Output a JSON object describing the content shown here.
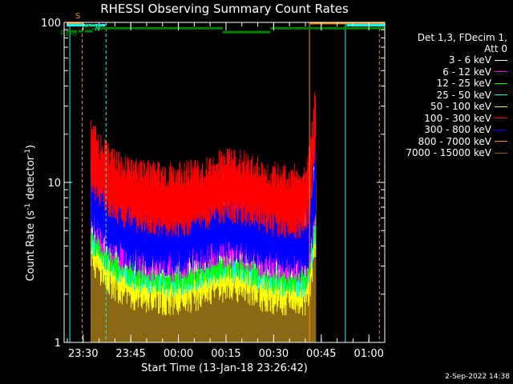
{
  "chart_data": {
    "type": "line",
    "title": "RHESSI Observing Summary Count Rates",
    "xlabel": "Start Time (13-Jan-18 23:26:42)",
    "ylabel_main": "Count Rate (s",
    "ylabel_sup1": "-1",
    "ylabel_mid": " detector",
    "ylabel_sup2": "-1",
    "ylabel_end": ")",
    "yscale": "log",
    "ylim": [
      1,
      100
    ],
    "xlim_min": [
      -2,
      99
    ],
    "x_ticks": [
      {
        "t": 4,
        "label": "23:30"
      },
      {
        "t": 19,
        "label": "23:45"
      },
      {
        "t": 34,
        "label": "00:00"
      },
      {
        "t": 49,
        "label": "00:15"
      },
      {
        "t": 64,
        "label": "00:30"
      },
      {
        "t": 79,
        "label": "00:45"
      },
      {
        "t": 94,
        "label": "01:00"
      }
    ],
    "y_ticks": [
      {
        "v": 1,
        "label": "1"
      },
      {
        "v": 10,
        "label": "10"
      },
      {
        "v": 100,
        "label": "100"
      }
    ],
    "legend_header": [
      "Det 1,3, FDecim 1,",
      "Att 0"
    ],
    "series": [
      {
        "name": "3 - 6 keV",
        "color": "#ffffff",
        "base": 4.5
      },
      {
        "name": "6 - 12 keV",
        "color": "#ff00ff",
        "base": 4.2
      },
      {
        "name": "12 - 25 keV",
        "color": "#00ff00",
        "base": 3.6
      },
      {
        "name": "25 - 50 keV",
        "color": "#00ffff",
        "base": 3.4
      },
      {
        "name": "50 - 100 keV",
        "color": "#ffff00",
        "base": 2.6
      },
      {
        "name": "100 - 300 keV",
        "color": "#ff0000",
        "base": 8.0
      },
      {
        "name": "300 - 800 keV",
        "color": "#0000ff",
        "base": 4.6
      },
      {
        "name": "800 - 7000 keV",
        "color": "#ff8c00",
        "base": 2.2
      },
      {
        "name": "7000 - 15000 keV",
        "color": "#8b6914",
        "base": 1.8
      }
    ],
    "flags": [
      {
        "label": "S",
        "color": "#ff8c00",
        "y": 99,
        "segments": [
          [
            -1,
            3.5
          ],
          [
            75.5,
            99
          ]
        ]
      },
      {
        "label": "N",
        "color": "#00ffff",
        "y": 96,
        "segments": [
          [
            -1,
            11
          ],
          [
            87,
            99
          ]
        ]
      },
      {
        "label": "RD6",
        "color": "#008000",
        "y": 88,
        "segments": [
          [
            -1,
            2
          ],
          [
            2.5,
            4
          ],
          [
            4.5,
            7
          ]
        ]
      },
      {
        "label": "RD6",
        "color": "#008000",
        "y": 92,
        "segments": [
          [
            8,
            48
          ],
          [
            63,
            99
          ]
        ]
      },
      {
        "label": "",
        "color": "#008000",
        "y": 87,
        "segments": [
          [
            48,
            63
          ]
        ]
      }
    ],
    "vlines": [
      {
        "t": 3.7,
        "color": "#ff8c00",
        "dashed": true
      },
      {
        "t": 11.2,
        "color": "#00ffff",
        "dashed": true
      },
      {
        "t": 75.3,
        "color": "#ff8c00",
        "dashed": false
      },
      {
        "t": 86.6,
        "color": "#00ffff",
        "dashed": false
      },
      {
        "t": 97.3,
        "color": "#ff8c00",
        "dashed": true
      },
      {
        "t": -0.2,
        "color": "#00ffff",
        "dashed": false
      }
    ],
    "data_start": 6.5,
    "data_end": 77.2
  },
  "timestamp": "2-Sep-2022 14:38"
}
